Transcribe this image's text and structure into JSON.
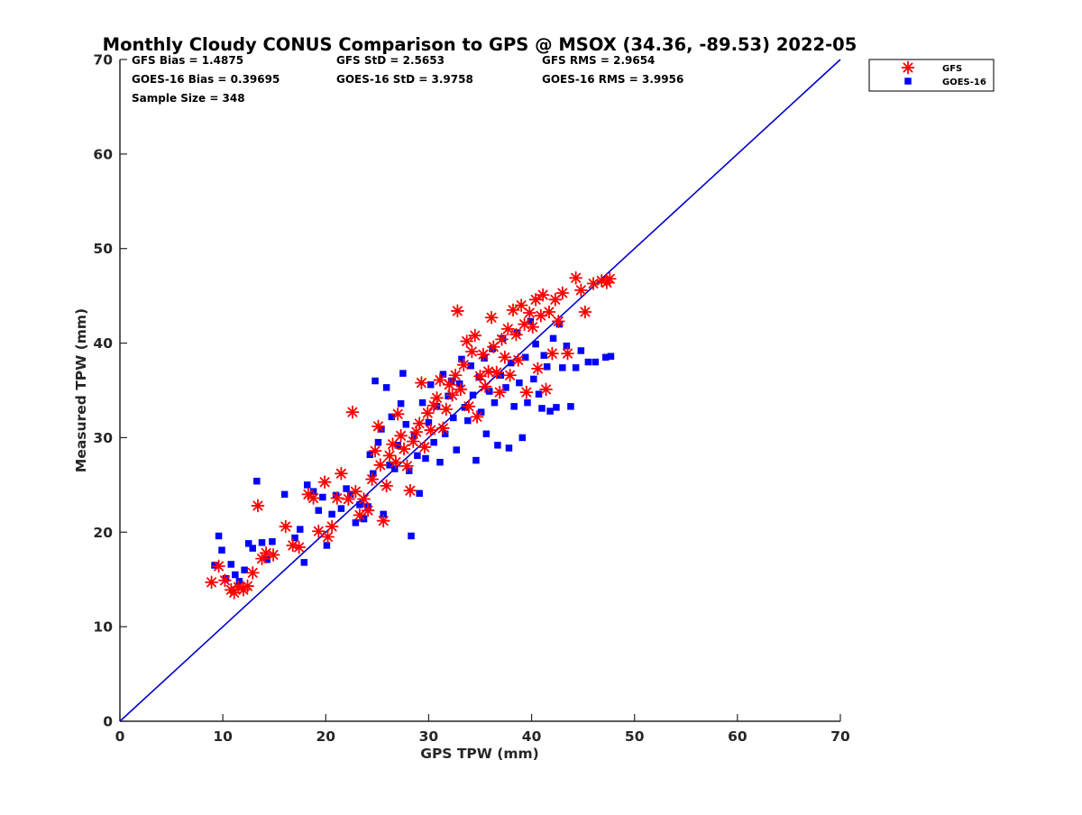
{
  "chart_data": {
    "type": "scatter",
    "title": "Monthly Cloudy CONUS Comparison to GPS @ MSOX (34.36, -89.53) 2022-05",
    "xlabel": "GPS TPW (mm)",
    "ylabel": "Measured TPW (mm)",
    "xlim": [
      0,
      70
    ],
    "ylim": [
      0,
      70
    ],
    "xticks": [
      0,
      10,
      20,
      30,
      40,
      50,
      60,
      70
    ],
    "yticks": [
      0,
      10,
      20,
      30,
      40,
      50,
      60,
      70
    ],
    "tick_labels": [
      "0",
      "10",
      "20",
      "30",
      "40",
      "50",
      "60",
      "70"
    ],
    "grid": false,
    "legend_position": "top-right, outside plot",
    "annotations": [
      "GFS Bias = 1.4875",
      "GFS StD = 2.5653",
      "GFS RMS = 2.9654",
      "GOES-16 Bias = 0.39695",
      "GOES-16 StD = 3.9758",
      "GOES-16 RMS = 3.9956",
      "Sample Size = 348"
    ],
    "reference_line": {
      "x": [
        0,
        70
      ],
      "y": [
        0,
        70
      ],
      "color": "#0000d0"
    },
    "series": [
      {
        "name": "GFS",
        "marker": "asterisk",
        "color": "#ff0000",
        "points": [
          [
            8.9,
            14.7
          ],
          [
            9.6,
            16.4
          ],
          [
            10.2,
            14.9
          ],
          [
            10.8,
            13.9
          ],
          [
            11.1,
            13.6
          ],
          [
            11.5,
            14.2
          ],
          [
            12.0,
            13.9
          ],
          [
            12.4,
            14.3
          ],
          [
            12.9,
            15.7
          ],
          [
            13.4,
            22.8
          ],
          [
            13.8,
            17.2
          ],
          [
            14.2,
            17.8
          ],
          [
            14.9,
            17.6
          ],
          [
            16.1,
            20.6
          ],
          [
            16.8,
            18.6
          ],
          [
            17.4,
            18.4
          ],
          [
            18.3,
            24.0
          ],
          [
            18.8,
            23.6
          ],
          [
            19.3,
            20.1
          ],
          [
            19.9,
            25.3
          ],
          [
            20.2,
            19.5
          ],
          [
            20.6,
            20.6
          ],
          [
            21.1,
            23.6
          ],
          [
            21.5,
            26.2
          ],
          [
            22.2,
            23.5
          ],
          [
            22.6,
            32.7
          ],
          [
            22.9,
            24.3
          ],
          [
            23.3,
            21.8
          ],
          [
            23.7,
            23.5
          ],
          [
            24.1,
            22.3
          ],
          [
            24.5,
            25.6
          ],
          [
            24.8,
            28.6
          ],
          [
            25.1,
            31.2
          ],
          [
            25.3,
            27.1
          ],
          [
            25.6,
            21.2
          ],
          [
            25.9,
            24.9
          ],
          [
            26.2,
            28.1
          ],
          [
            26.5,
            29.3
          ],
          [
            26.8,
            27.4
          ],
          [
            27.0,
            32.5
          ],
          [
            27.3,
            30.2
          ],
          [
            27.6,
            28.8
          ],
          [
            27.9,
            27.0
          ],
          [
            28.2,
            24.4
          ],
          [
            28.5,
            29.6
          ],
          [
            28.8,
            30.6
          ],
          [
            29.1,
            31.5
          ],
          [
            29.3,
            35.8
          ],
          [
            29.6,
            29.0
          ],
          [
            29.9,
            32.6
          ],
          [
            30.2,
            30.8
          ],
          [
            30.5,
            33.4
          ],
          [
            30.8,
            34.2
          ],
          [
            31.1,
            36.1
          ],
          [
            31.4,
            31.0
          ],
          [
            31.7,
            33.0
          ],
          [
            32.0,
            35.6
          ],
          [
            32.3,
            34.5
          ],
          [
            32.6,
            36.6
          ],
          [
            32.8,
            43.4
          ],
          [
            33.1,
            35.1
          ],
          [
            33.4,
            37.7
          ],
          [
            33.7,
            40.2
          ],
          [
            33.9,
            33.3
          ],
          [
            34.2,
            39.1
          ],
          [
            34.5,
            40.8
          ],
          [
            34.7,
            32.2
          ],
          [
            35.0,
            36.5
          ],
          [
            35.3,
            38.8
          ],
          [
            35.5,
            35.4
          ],
          [
            35.8,
            37.0
          ],
          [
            36.1,
            42.7
          ],
          [
            36.3,
            39.6
          ],
          [
            36.6,
            36.9
          ],
          [
            36.9,
            34.8
          ],
          [
            37.1,
            40.4
          ],
          [
            37.4,
            38.5
          ],
          [
            37.7,
            41.5
          ],
          [
            37.9,
            36.6
          ],
          [
            38.2,
            43.5
          ],
          [
            38.5,
            40.9
          ],
          [
            38.7,
            38.2
          ],
          [
            39.0,
            44.0
          ],
          [
            39.3,
            42.0
          ],
          [
            39.5,
            34.8
          ],
          [
            39.8,
            43.2
          ],
          [
            40.1,
            41.7
          ],
          [
            40.4,
            44.6
          ],
          [
            40.6,
            37.3
          ],
          [
            40.9,
            42.9
          ],
          [
            41.1,
            45.1
          ],
          [
            41.4,
            35.1
          ],
          [
            41.7,
            43.3
          ],
          [
            42.0,
            38.9
          ],
          [
            42.3,
            44.6
          ],
          [
            42.6,
            42.3
          ],
          [
            43.0,
            45.3
          ],
          [
            43.5,
            38.9
          ],
          [
            44.3,
            46.9
          ],
          [
            44.8,
            45.6
          ],
          [
            45.2,
            43.3
          ],
          [
            46.0,
            46.3
          ],
          [
            46.8,
            46.6
          ],
          [
            47.3,
            46.4
          ],
          [
            47.6,
            46.8
          ]
        ]
      },
      {
        "name": "GOES-16",
        "marker": "square",
        "color": "#0000ff",
        "points": [
          [
            9.2,
            16.5
          ],
          [
            9.6,
            19.6
          ],
          [
            9.9,
            18.1
          ],
          [
            10.3,
            15.1
          ],
          [
            10.8,
            16.6
          ],
          [
            11.2,
            15.5
          ],
          [
            11.6,
            14.8
          ],
          [
            12.1,
            16.0
          ],
          [
            12.5,
            18.8
          ],
          [
            12.9,
            18.3
          ],
          [
            13.3,
            25.4
          ],
          [
            13.8,
            18.9
          ],
          [
            14.3,
            17.1
          ],
          [
            14.8,
            19.0
          ],
          [
            16.0,
            24.0
          ],
          [
            17.0,
            19.4
          ],
          [
            17.5,
            20.3
          ],
          [
            17.9,
            16.8
          ],
          [
            18.2,
            25.0
          ],
          [
            18.8,
            24.3
          ],
          [
            19.3,
            22.3
          ],
          [
            19.7,
            23.7
          ],
          [
            20.1,
            18.6
          ],
          [
            20.6,
            21.9
          ],
          [
            21.0,
            23.9
          ],
          [
            21.5,
            22.5
          ],
          [
            22.0,
            24.6
          ],
          [
            22.4,
            24.0
          ],
          [
            22.9,
            21.0
          ],
          [
            23.3,
            22.9
          ],
          [
            23.7,
            21.4
          ],
          [
            24.1,
            22.7
          ],
          [
            24.3,
            28.2
          ],
          [
            24.6,
            26.2
          ],
          [
            24.8,
            36.0
          ],
          [
            25.1,
            29.5
          ],
          [
            25.4,
            30.9
          ],
          [
            25.6,
            21.9
          ],
          [
            25.9,
            35.3
          ],
          [
            26.2,
            27.1
          ],
          [
            26.4,
            32.2
          ],
          [
            26.7,
            26.7
          ],
          [
            27.0,
            29.2
          ],
          [
            27.3,
            33.6
          ],
          [
            27.5,
            36.8
          ],
          [
            27.8,
            31.4
          ],
          [
            28.1,
            26.5
          ],
          [
            28.3,
            19.6
          ],
          [
            28.6,
            30.2
          ],
          [
            28.9,
            28.1
          ],
          [
            29.1,
            24.1
          ],
          [
            29.4,
            33.7
          ],
          [
            29.7,
            27.8
          ],
          [
            30.0,
            31.6
          ],
          [
            30.2,
            35.6
          ],
          [
            30.5,
            29.5
          ],
          [
            30.8,
            33.3
          ],
          [
            31.1,
            27.4
          ],
          [
            31.4,
            36.7
          ],
          [
            31.6,
            30.4
          ],
          [
            31.9,
            34.4
          ],
          [
            32.2,
            36.0
          ],
          [
            32.4,
            32.1
          ],
          [
            32.7,
            28.7
          ],
          [
            33.0,
            35.7
          ],
          [
            33.2,
            38.3
          ],
          [
            33.5,
            33.2
          ],
          [
            33.8,
            31.8
          ],
          [
            34.1,
            37.6
          ],
          [
            34.3,
            34.5
          ],
          [
            34.6,
            27.6
          ],
          [
            34.9,
            36.4
          ],
          [
            35.1,
            32.7
          ],
          [
            35.4,
            38.4
          ],
          [
            35.6,
            30.4
          ],
          [
            35.9,
            34.9
          ],
          [
            36.2,
            39.4
          ],
          [
            36.4,
            33.7
          ],
          [
            36.7,
            29.2
          ],
          [
            37.0,
            36.6
          ],
          [
            37.2,
            40.5
          ],
          [
            37.5,
            35.3
          ],
          [
            37.8,
            28.9
          ],
          [
            38.0,
            37.9
          ],
          [
            38.3,
            33.3
          ],
          [
            38.6,
            41.1
          ],
          [
            38.8,
            35.8
          ],
          [
            39.1,
            30.0
          ],
          [
            39.4,
            38.5
          ],
          [
            39.6,
            33.7
          ],
          [
            39.9,
            42.3
          ],
          [
            40.2,
            36.2
          ],
          [
            40.4,
            39.9
          ],
          [
            40.7,
            34.6
          ],
          [
            41.0,
            33.1
          ],
          [
            41.2,
            38.7
          ],
          [
            41.5,
            37.5
          ],
          [
            41.8,
            32.8
          ],
          [
            42.1,
            40.5
          ],
          [
            42.4,
            33.2
          ],
          [
            42.7,
            42.0
          ],
          [
            43.0,
            37.4
          ],
          [
            43.4,
            39.7
          ],
          [
            43.8,
            33.3
          ],
          [
            44.3,
            37.4
          ],
          [
            44.8,
            39.2
          ],
          [
            45.5,
            38.0
          ],
          [
            46.2,
            38.0
          ],
          [
            47.2,
            38.5
          ],
          [
            47.7,
            38.6
          ]
        ]
      }
    ]
  }
}
